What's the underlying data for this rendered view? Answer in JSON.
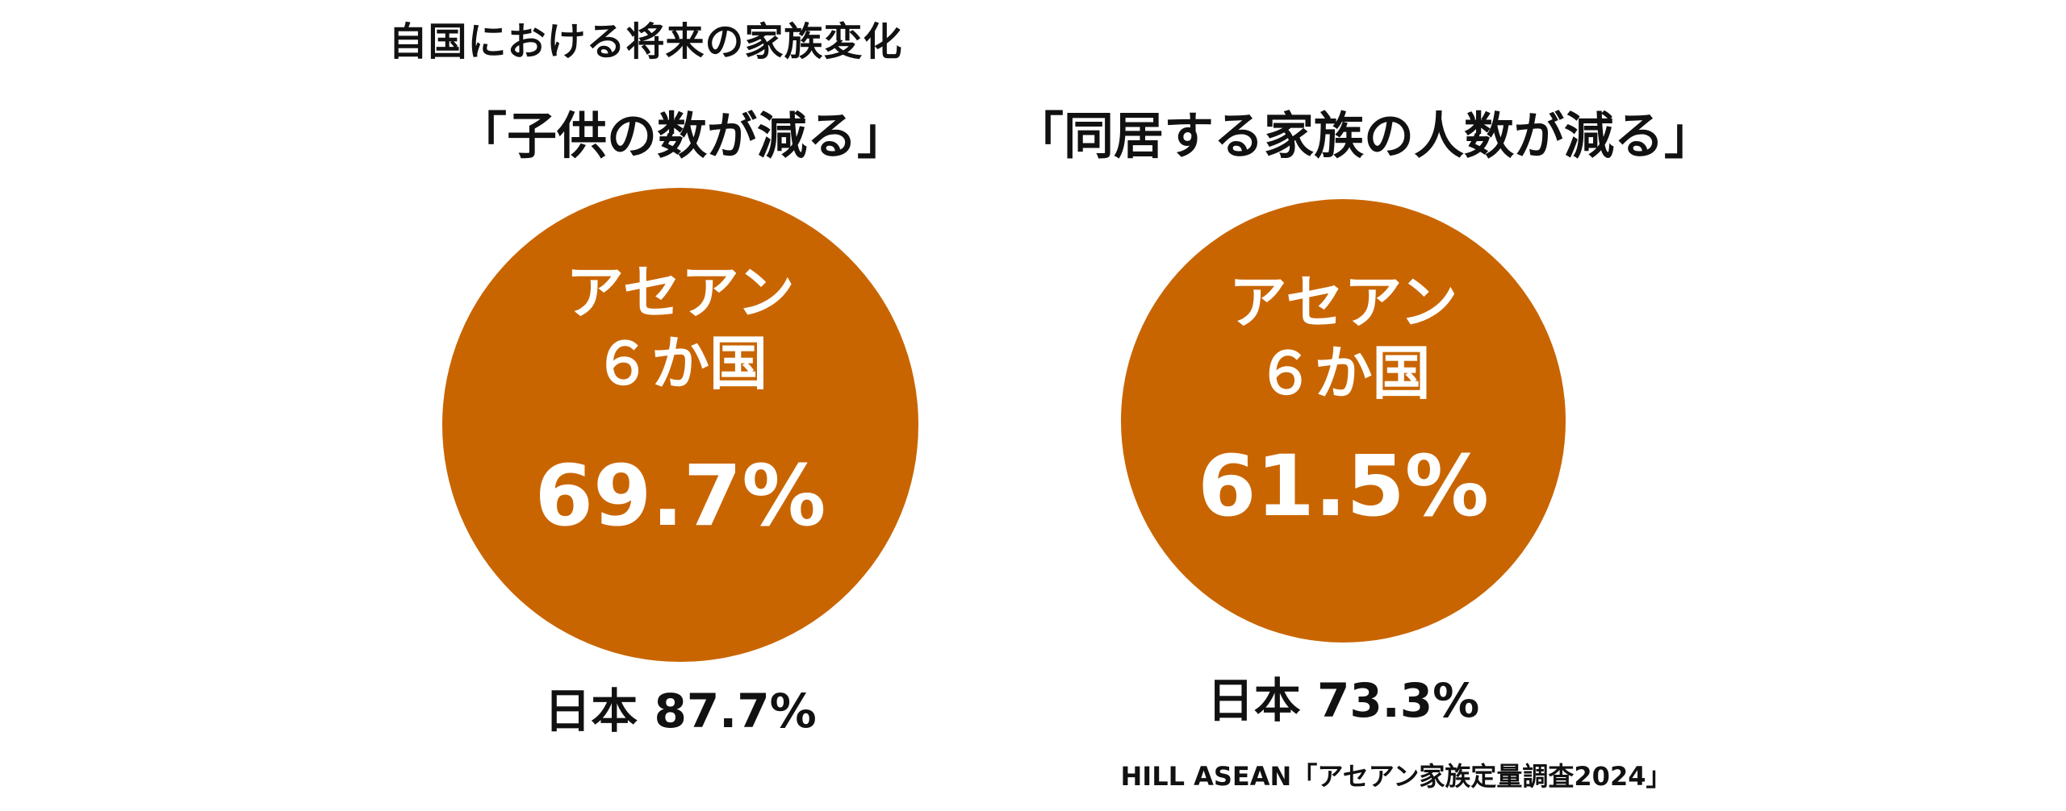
{
  "title": "自国における将来の家族変化",
  "panels": [
    {
      "heading": "「子供の数が減る」",
      "circle_label_line1": "アセアン",
      "circle_label_line2": "６か国",
      "asean_value": "69.7%",
      "japan_text": "日本 87.7%"
    },
    {
      "heading": "「同居する家族の人数が減る」",
      "circle_label_line1": "アセアン",
      "circle_label_line2": "６か国",
      "asean_value": "61.5%",
      "japan_text": "日本 73.3%"
    }
  ],
  "source": "HILL ASEAN「アセアン家族定量調査2024」",
  "colors": {
    "circle_fill": "#c96500",
    "circle_text": "#ffffff",
    "text": "#111111",
    "background": "#ffffff"
  }
}
